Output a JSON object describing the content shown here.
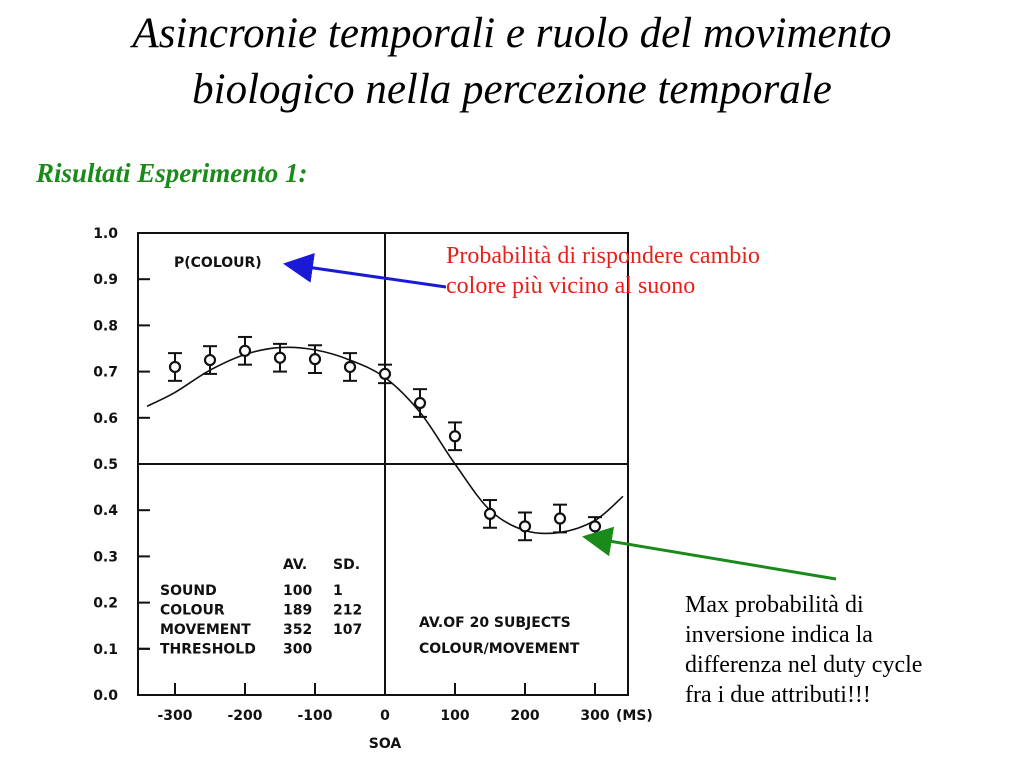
{
  "slide": {
    "title_line1": "Asincronie temporali e ruolo del movimento",
    "title_line2": "biologico nella percezione temporale",
    "subtitle": "Risultati Esperimento 1:"
  },
  "annotations": {
    "top_line1": "Probabilità di rispondere cambio",
    "top_line2": "colore più vicino al suono",
    "bottom_line1": "Max probabilità di",
    "bottom_line2": "inversione indica la",
    "bottom_line3": "differenza nel duty cycle",
    "bottom_line4": "fra i due attributi!!!",
    "top_arrow_color": "#1a1ad6",
    "bottom_arrow_color": "#1a8a1a"
  },
  "chart_data": {
    "type": "scatter",
    "title": "P(COLOUR)",
    "xlabel": "SOA",
    "x_unit_label": "(MS)",
    "ylabel": "",
    "xlim": [
      -300,
      300
    ],
    "ylim": [
      0.0,
      1.0
    ],
    "x_ticks": [
      -300,
      -200,
      -100,
      0,
      100,
      200,
      300
    ],
    "x_tick_labels": [
      "-300",
      "-200",
      "-100",
      "0",
      "100",
      "200",
      "300"
    ],
    "y_ticks": [
      0.0,
      0.1,
      0.2,
      0.3,
      0.4,
      0.5,
      0.6,
      0.7,
      0.8,
      0.9,
      1.0
    ],
    "y_tick_labels": [
      "0.0",
      "0.1",
      "0.2",
      "0.3",
      "0.4",
      "0.5",
      "0.6",
      "0.7",
      "0.8",
      "0.9",
      "1.0"
    ],
    "reference_lines": {
      "x": 0,
      "y": 0.5
    },
    "points": [
      {
        "x": -300,
        "y": 0.71,
        "err": 0.03
      },
      {
        "x": -250,
        "y": 0.725,
        "err": 0.03
      },
      {
        "x": -200,
        "y": 0.745,
        "err": 0.03
      },
      {
        "x": -150,
        "y": 0.73,
        "err": 0.03
      },
      {
        "x": -100,
        "y": 0.727,
        "err": 0.03
      },
      {
        "x": -50,
        "y": 0.71,
        "err": 0.03
      },
      {
        "x": 0,
        "y": 0.695,
        "err": 0.02
      },
      {
        "x": 50,
        "y": 0.632,
        "err": 0.03
      },
      {
        "x": 100,
        "y": 0.56,
        "err": 0.03
      },
      {
        "x": 150,
        "y": 0.392,
        "err": 0.03
      },
      {
        "x": 200,
        "y": 0.365,
        "err": 0.03
      },
      {
        "x": 250,
        "y": 0.382,
        "err": 0.03
      },
      {
        "x": 300,
        "y": 0.365,
        "err": 0.02
      }
    ],
    "fit_curve": {
      "x": [
        -340,
        -300,
        -250,
        -200,
        -150,
        -100,
        -50,
        0,
        50,
        100,
        150,
        200,
        250,
        300,
        340
      ],
      "y": [
        0.625,
        0.655,
        0.703,
        0.737,
        0.752,
        0.747,
        0.725,
        0.687,
        0.612,
        0.5,
        0.4,
        0.356,
        0.352,
        0.378,
        0.43
      ]
    },
    "table": {
      "headers": [
        "",
        "AV.",
        "SD."
      ],
      "rows": [
        [
          "SOUND",
          "100",
          "1"
        ],
        [
          "COLOUR",
          "189",
          "212"
        ],
        [
          "MOVEMENT",
          "352",
          "107"
        ],
        [
          "THRESHOLD",
          "300",
          ""
        ]
      ]
    },
    "notes": [
      "AV.OF 20 SUBJECTS",
      "COLOUR/MOVEMENT"
    ]
  }
}
